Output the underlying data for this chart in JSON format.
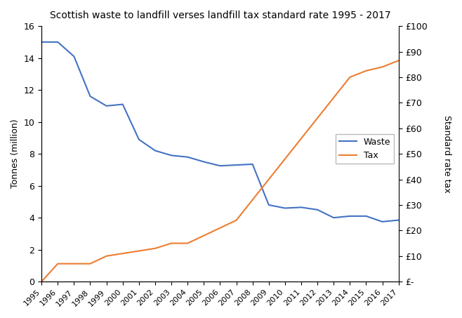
{
  "title": "Scottish waste to landfill verses landfill tax standard rate 1995 - 2017",
  "years": [
    1995,
    1996,
    1997,
    1998,
    1999,
    2000,
    2001,
    2002,
    2003,
    2004,
    2005,
    2006,
    2007,
    2008,
    2009,
    2010,
    2011,
    2012,
    2013,
    2014,
    2015,
    2016,
    2017
  ],
  "waste": [
    15.0,
    15.0,
    14.1,
    11.6,
    11.0,
    11.1,
    8.9,
    8.2,
    7.9,
    7.8,
    7.5,
    7.25,
    7.3,
    7.35,
    4.8,
    4.6,
    4.65,
    4.5,
    4.0,
    4.1,
    4.1,
    3.75,
    3.85
  ],
  "tax": [
    0.0,
    7.0,
    7.0,
    7.0,
    10.0,
    11.0,
    12.0,
    13.0,
    15.0,
    15.0,
    18.0,
    21.0,
    24.0,
    32.0,
    40.0,
    48.0,
    56.0,
    64.0,
    72.0,
    80.0,
    82.5,
    84.0,
    86.5
  ],
  "waste_color": "#4472C4",
  "tax_color": "#ED7D31",
  "ylabel_left": "Tonnes (million)",
  "ylabel_right": "Standard rate tax",
  "ylim_left": [
    0,
    16
  ],
  "ylim_right": [
    0,
    100
  ],
  "yticks_left": [
    0,
    2,
    4,
    6,
    8,
    10,
    12,
    14,
    16
  ],
  "yticks_right": [
    0,
    10,
    20,
    30,
    40,
    50,
    60,
    70,
    80,
    90,
    100
  ],
  "ytick_labels_right": [
    "£-",
    "£10",
    "£20",
    "£30",
    "£40",
    "£50",
    "£60",
    "£70",
    "£80",
    "£90",
    "£100"
  ],
  "legend_waste": "Waste",
  "legend_tax": "Tax",
  "background_color": "#FFFFFF",
  "figsize": [
    6.58,
    4.53
  ],
  "dpi": 100
}
